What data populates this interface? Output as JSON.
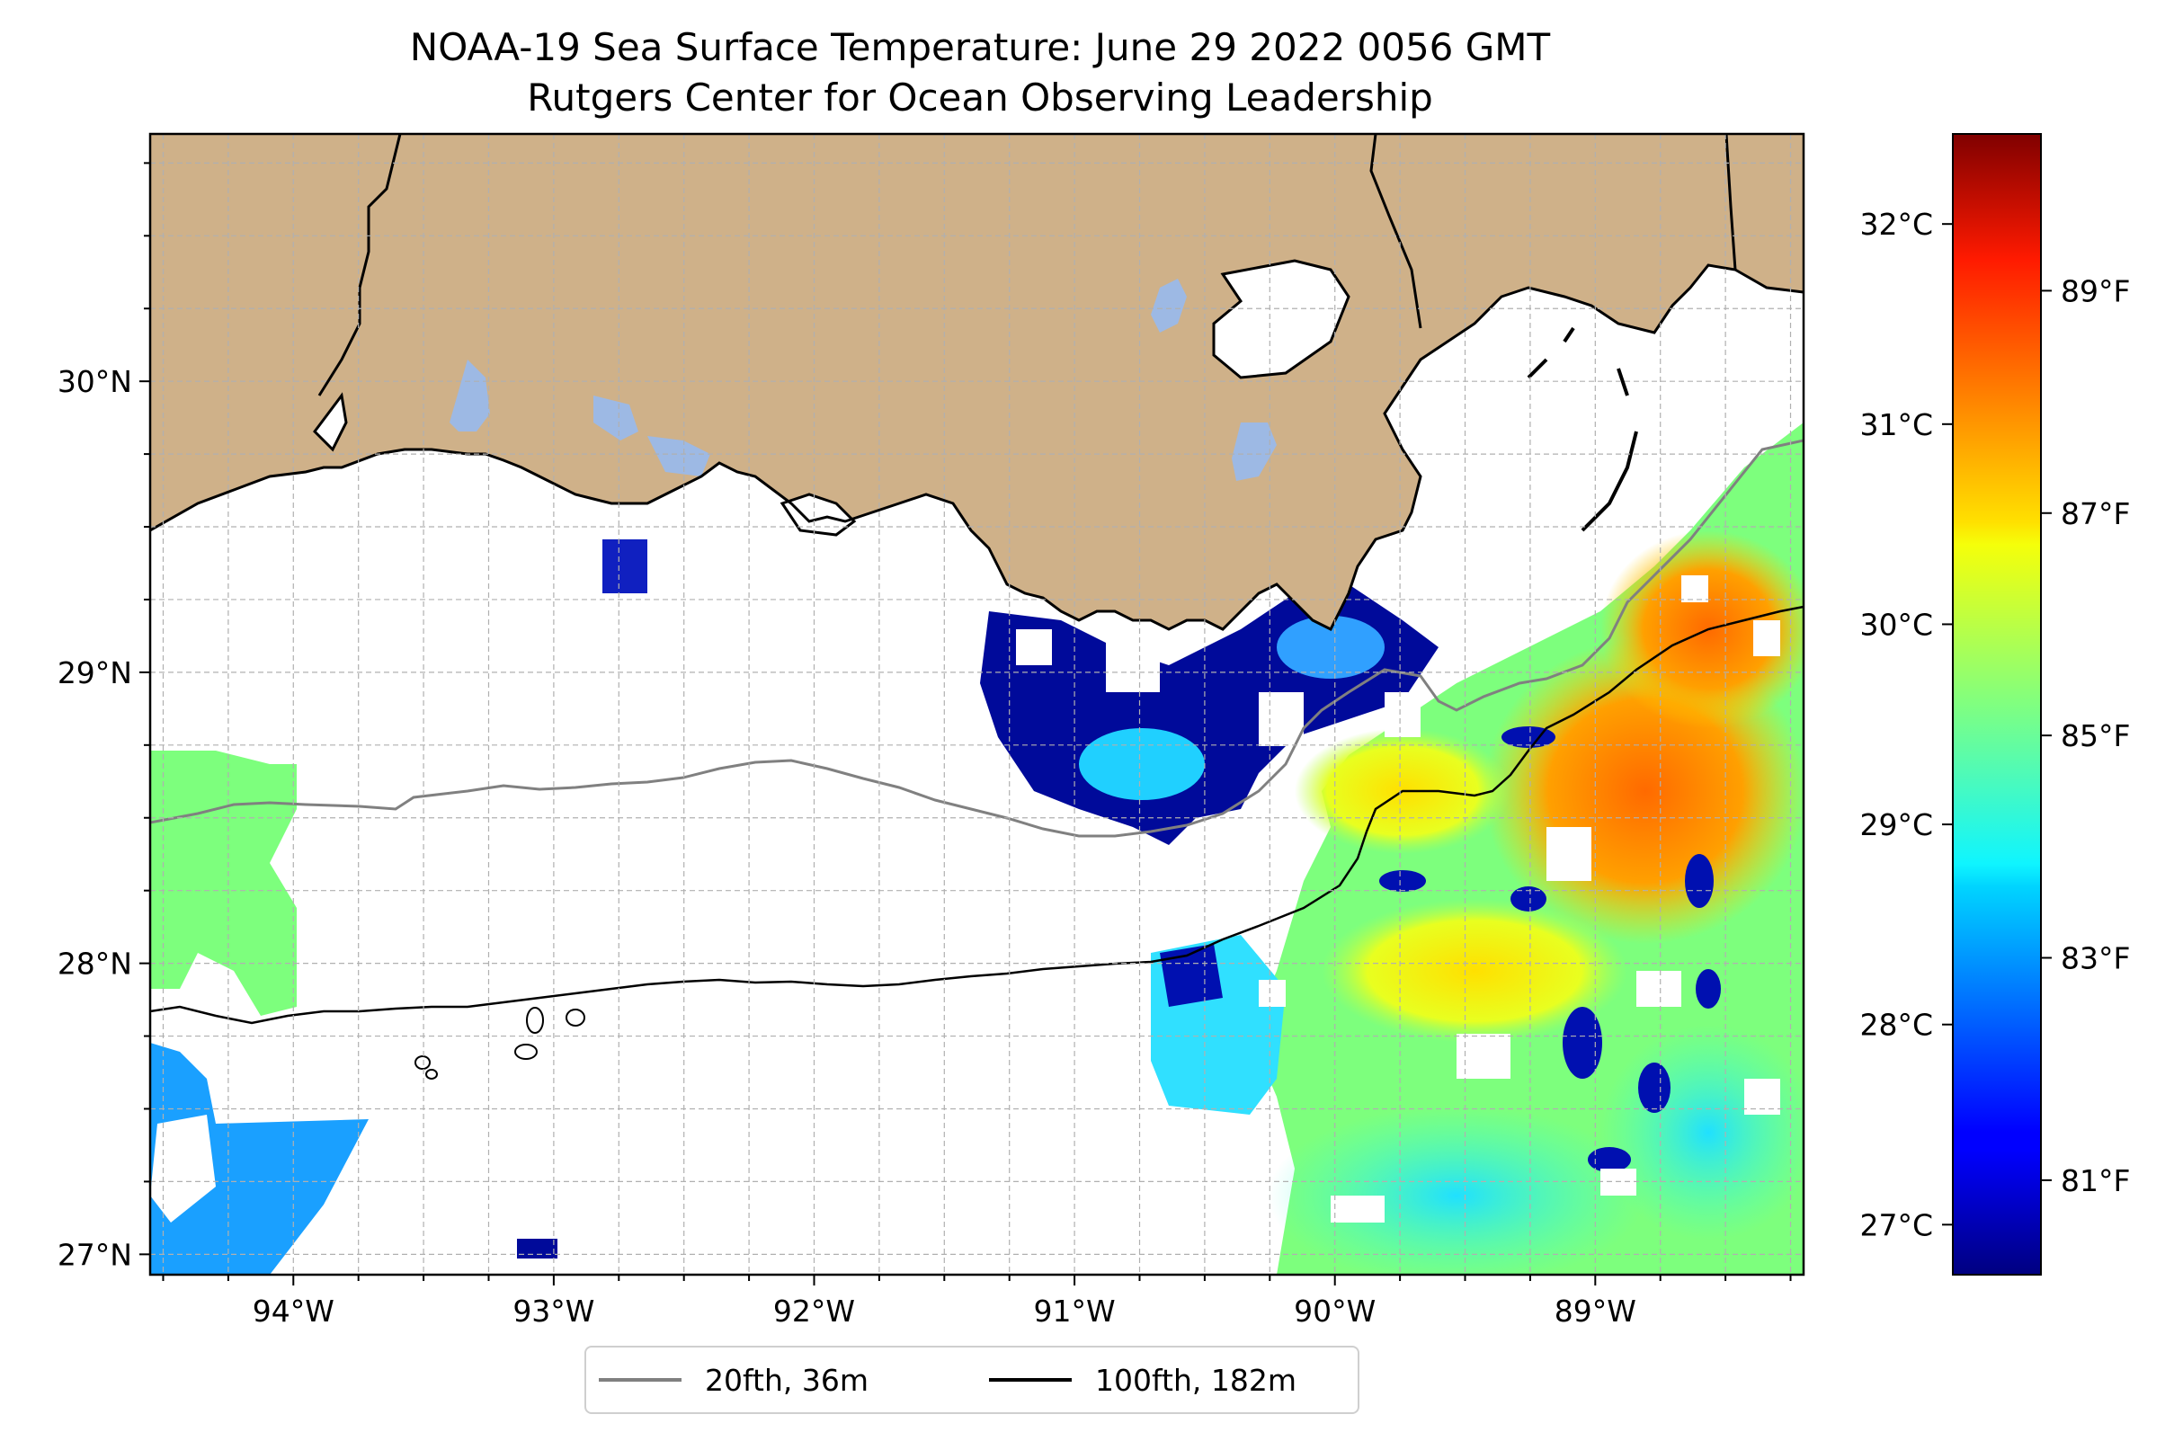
{
  "title": {
    "line1": "NOAA-19 Sea Surface Temperature: June 29 2022 0056 GMT",
    "line2": "Rutgers Center for Ocean Observing Leadership"
  },
  "map": {
    "lon_range": [
      -94.55,
      -88.2
    ],
    "lat_range": [
      26.93,
      30.85
    ],
    "lon_ticks": [
      -94,
      -93,
      -92,
      -91,
      -90,
      -89
    ],
    "lon_tick_labels": [
      "94°W",
      "93°W",
      "92°W",
      "91°W",
      "90°W",
      "89°W"
    ],
    "lat_ticks": [
      27,
      28,
      29,
      30
    ],
    "lat_tick_labels": [
      "27°N",
      "28°N",
      "29°N",
      "30°N"
    ],
    "grid": "dashed gray",
    "land_color": "#cfb189",
    "lake_color": "#9db9e4",
    "no_data_color": "#ffffff"
  },
  "colorbar": {
    "colormap": "jet",
    "celsius_range": [
      26.75,
      32.45
    ],
    "celsius_ticks": [
      27,
      28,
      29,
      30,
      31,
      32
    ],
    "celsius_labels": [
      "27°C",
      "28°C",
      "29°C",
      "30°C",
      "31°C",
      "32°C"
    ],
    "fahrenheit_ticks": [
      81,
      83,
      85,
      87,
      89
    ],
    "fahrenheit_labels": [
      "81°F",
      "83°F",
      "85°F",
      "87°F",
      "89°F"
    ]
  },
  "legend": {
    "placement": "bottom-center",
    "items": [
      {
        "label": "20fth, 36m",
        "color": "#808080"
      },
      {
        "label": "100fth, 182m",
        "color": "#000000"
      }
    ]
  }
}
